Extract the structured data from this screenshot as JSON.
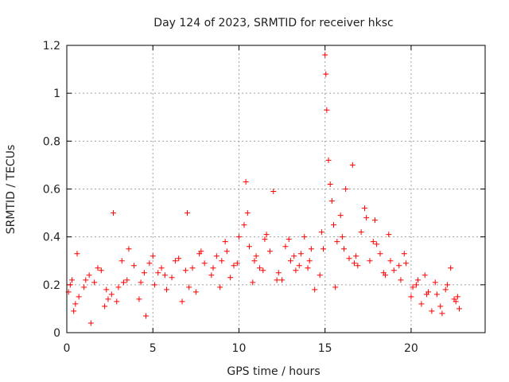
{
  "chart_data": {
    "type": "scatter",
    "title": "Day 124 of 2023, SRMTID for receiver hksc",
    "xlabel": "GPS time / hours",
    "ylabel": "SRMTID / TECUs",
    "xlim": [
      0,
      24.3
    ],
    "ylim": [
      0,
      1.2
    ],
    "x_ticks": [
      0,
      5,
      10,
      15,
      20
    ],
    "x_tick_labels": [
      "0",
      "5",
      "10",
      "15",
      "20"
    ],
    "y_ticks": [
      0,
      0.2,
      0.4,
      0.6,
      0.8,
      1.0,
      1.2
    ],
    "y_tick_labels": [
      "0",
      "0.2",
      "0.4",
      "0.6",
      "0.8",
      "1",
      "1.2"
    ],
    "grid": true,
    "series": [
      {
        "name": "SRMTID",
        "color": "#ff0000",
        "marker": "plus",
        "x": [
          0.1,
          0.3,
          0.5,
          0.7,
          1.0,
          1.3,
          1.6,
          2.0,
          2.3,
          2.6,
          2.7,
          2.9,
          3.2,
          3.5,
          3.9,
          4.2,
          4.5,
          4.8,
          5.1,
          5.5,
          5.8,
          6.1,
          6.5,
          6.9,
          7.0,
          7.3,
          7.7,
          8.0,
          8.4,
          8.7,
          9.0,
          9.3,
          9.7,
          10.0,
          10.3,
          10.4,
          10.6,
          10.9,
          11.2,
          11.5,
          11.8,
          12.0,
          12.3,
          12.7,
          13.0,
          13.3,
          13.6,
          13.8,
          14.1,
          14.4,
          14.7,
          14.9,
          15.0,
          15.05,
          15.1,
          15.2,
          15.3,
          15.5,
          15.7,
          15.9,
          16.1,
          16.2,
          16.4,
          16.6,
          16.9,
          17.1,
          17.3,
          17.6,
          17.9,
          18.2,
          18.5,
          18.8,
          19.0,
          19.4,
          19.7,
          20.0,
          20.3,
          20.6,
          20.9,
          21.2,
          21.4,
          21.7,
          22.0,
          22.3,
          22.6,
          22.8,
          0.2,
          0.6,
          1.1,
          1.8,
          2.4,
          3.0,
          3.6,
          4.3,
          5.0,
          5.7,
          6.3,
          7.1,
          7.8,
          8.5,
          9.2,
          9.9,
          10.5,
          11.0,
          11.6,
          12.2,
          12.9,
          13.5,
          14.2,
          14.8,
          15.4,
          16.0,
          16.7,
          17.4,
          18.0,
          18.7,
          19.3,
          20.1,
          20.8,
          21.5,
          22.1,
          22.7,
          0.4,
          1.4,
          2.2,
          3.3,
          4.6,
          5.3,
          6.7,
          7.5,
          8.9,
          9.5,
          10.8,
          11.4,
          12.5,
          13.2,
          14.0,
          15.6,
          16.8,
          17.8,
          18.4,
          19.6,
          20.4,
          21.0,
          21.8,
          22.5
        ],
        "y": [
          0.17,
          0.22,
          0.12,
          0.15,
          0.19,
          0.24,
          0.21,
          0.26,
          0.18,
          0.16,
          0.5,
          0.13,
          0.3,
          0.22,
          0.28,
          0.14,
          0.25,
          0.29,
          0.2,
          0.27,
          0.18,
          0.23,
          0.31,
          0.26,
          0.5,
          0.27,
          0.33,
          0.29,
          0.24,
          0.32,
          0.3,
          0.34,
          0.28,
          0.4,
          0.45,
          0.63,
          0.36,
          0.3,
          0.27,
          0.39,
          0.34,
          0.59,
          0.25,
          0.36,
          0.3,
          0.26,
          0.33,
          0.4,
          0.3,
          0.18,
          0.24,
          0.35,
          1.16,
          1.08,
          0.93,
          0.72,
          0.62,
          0.45,
          0.38,
          0.49,
          0.35,
          0.6,
          0.31,
          0.7,
          0.28,
          0.42,
          0.52,
          0.3,
          0.47,
          0.33,
          0.24,
          0.3,
          0.26,
          0.22,
          0.29,
          0.15,
          0.2,
          0.12,
          0.16,
          0.09,
          0.21,
          0.11,
          0.18,
          0.27,
          0.13,
          0.1,
          0.2,
          0.33,
          0.22,
          0.27,
          0.14,
          0.19,
          0.35,
          0.21,
          0.32,
          0.24,
          0.3,
          0.19,
          0.34,
          0.27,
          0.38,
          0.29,
          0.5,
          0.32,
          0.41,
          0.22,
          0.39,
          0.28,
          0.35,
          0.42,
          0.55,
          0.4,
          0.29,
          0.48,
          0.37,
          0.41,
          0.28,
          0.19,
          0.24,
          0.16,
          0.2,
          0.15,
          0.09,
          0.04,
          0.11,
          0.21,
          0.07,
          0.25,
          0.13,
          0.17,
          0.19,
          0.23,
          0.21,
          0.26,
          0.22,
          0.32,
          0.27,
          0.19,
          0.32,
          0.38,
          0.25,
          0.33,
          0.22,
          0.17,
          0.08,
          0.14
        ]
      }
    ]
  }
}
